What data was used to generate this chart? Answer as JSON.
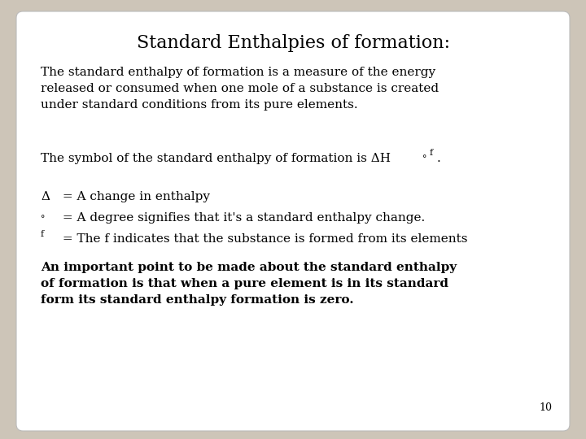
{
  "title": "Standard Enthalpies of formation:",
  "bg_color": "#cdc5b8",
  "card_color": "#ffffff",
  "title_fontsize": 16,
  "body_fontsize": 11,
  "bold_fontsize": 11,
  "page_number": "10",
  "paragraph1": "The standard enthalpy of formation is a measure of the energy\nreleased or consumed when one mole of a substance is created\nunder standard conditions from its pure elements.",
  "paragraph3_line1_pre": "Δ",
  "paragraph3_line1_post": " = A change in enthalpy",
  "paragraph3_line2_pre": "°",
  "paragraph3_line2_post": " = A degree signifies that it's a standard enthalpy change.",
  "paragraph3_line3_pre": "f",
  "paragraph3_line3_post": " = The f indicates that the substance is formed from its elements",
  "paragraph4": "An important point to be made about the standard enthalpy\nof formation is that when a pure element is in its standard\nform its standard enthalpy formation is zero."
}
